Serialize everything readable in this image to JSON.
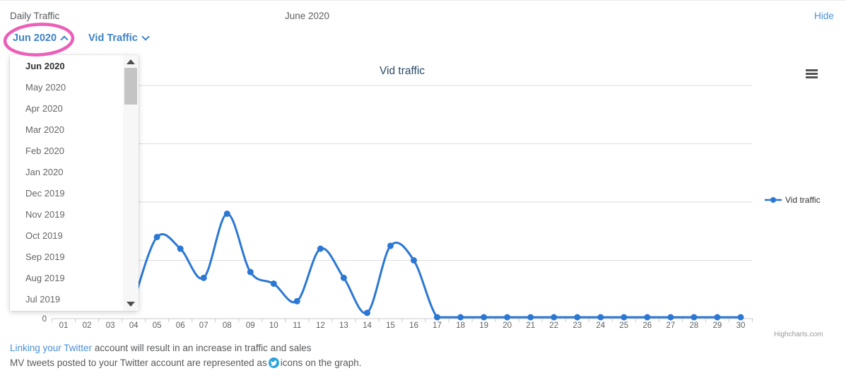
{
  "header": {
    "left_title": "Daily Traffic",
    "center_title": "June 2020",
    "hide_label": "Hide"
  },
  "toolbar": {
    "month_dropdown_label": "Jun 2020",
    "metric_dropdown_label": "Vid Traffic"
  },
  "month_menu": {
    "selected": "Jun 2020",
    "items": [
      "Jun 2020",
      "May 2020",
      "Apr 2020",
      "Mar 2020",
      "Feb 2020",
      "Jan 2020",
      "Dec 2019",
      "Nov 2019",
      "Oct 2019",
      "Sep 2019",
      "Aug 2019",
      "Jul 2019"
    ]
  },
  "chart_data": {
    "type": "line",
    "subtype": "spline",
    "title": "Vid traffic",
    "legend_position": "right",
    "grid": true,
    "categories": [
      "01",
      "02",
      "03",
      "04",
      "05",
      "06",
      "07",
      "08",
      "09",
      "10",
      "11",
      "12",
      "13",
      "14",
      "15",
      "16",
      "17",
      "18",
      "19",
      "20",
      "21",
      "22",
      "23",
      "24",
      "25",
      "26",
      "27",
      "28",
      "29",
      "30"
    ],
    "series": [
      {
        "name": "Vid traffic",
        "values": [
          null,
          null,
          null,
          0.3,
          1.4,
          1.2,
          0.7,
          1.8,
          0.8,
          0.6,
          0.3,
          1.2,
          0.7,
          0.1,
          1.25,
          1.0,
          0,
          0,
          0,
          0,
          0,
          0,
          0,
          0,
          0,
          0,
          0,
          0,
          0,
          0
        ]
      }
    ],
    "ylim": [
      0,
      4
    ],
    "visible_y_tick_label": "0",
    "colors": {
      "series": "#2b77d4",
      "grid": "#dcdcdc",
      "axis": "#c9c9c9",
      "axis_label": "#606060",
      "title": "#2c4a66",
      "legend_text": "#333333"
    }
  },
  "credits": "Highcharts.com",
  "footer": {
    "line1_link": "Linking your Twitter",
    "line1_rest": " account will result in an increase in traffic and sales",
    "line2_before": "MV tweets posted to your Twitter account are represented as",
    "line2_after": "icons on the graph."
  },
  "icons": {
    "month_caret": "chevron-up",
    "metric_caret": "chevron-down",
    "chart_menu": "hamburger",
    "tweet_marker": "twitter-bird",
    "menu_scroll_up": "triangle-up",
    "menu_scroll_down": "triangle-down"
  },
  "colors": {
    "accent_blue": "#3d82c8",
    "link_blue": "#4a90d9",
    "highlight_pink": "#ec5eb7",
    "twitter_blue": "#2aa3dd",
    "body_text": "#56595c"
  }
}
